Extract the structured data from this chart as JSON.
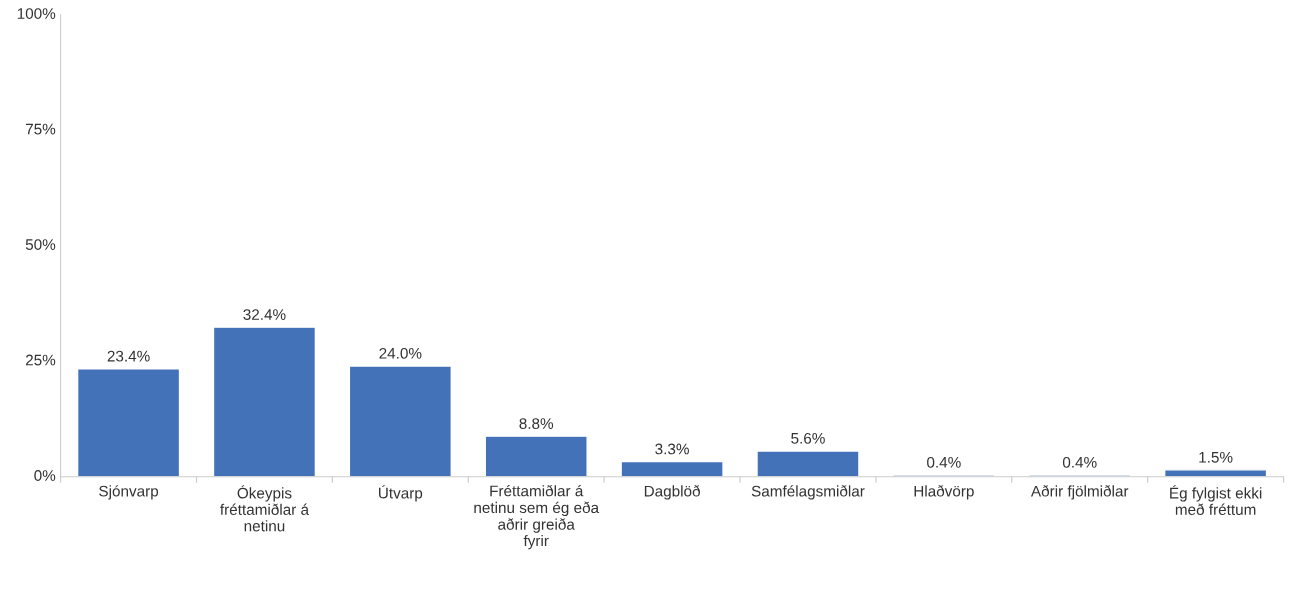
{
  "chart_data": {
    "type": "bar",
    "categories": [
      "Sjónvarp",
      "Ókeypis fréttamiðlar á netinu",
      "Útvarp",
      "Fréttamiðlar á netinu sem ég eða aðrir greiða fyrir",
      "Dagblöð",
      "Samfélagsmiðlar",
      "Hlaðvörp",
      "Aðrir fjölmiðlar",
      "Ég fylgist ekki með fréttum"
    ],
    "values": [
      23.4,
      32.4,
      24.0,
      8.8,
      3.3,
      5.6,
      0.4,
      0.4,
      1.5
    ],
    "value_labels": [
      "23.4%",
      "32.4%",
      "24.0%",
      "8.8%",
      "3.3%",
      "5.6%",
      "0.4%",
      "0.4%",
      "1.5%"
    ],
    "color": "#4472b8",
    "ylim": [
      0,
      100
    ],
    "yticks": [
      {
        "value": 0,
        "label": "0%"
      },
      {
        "value": 25,
        "label": "25%"
      },
      {
        "value": 50,
        "label": "50%"
      },
      {
        "value": 75,
        "label": "75%"
      },
      {
        "value": 100,
        "label": "100%"
      }
    ],
    "grid": false,
    "legend": false
  }
}
